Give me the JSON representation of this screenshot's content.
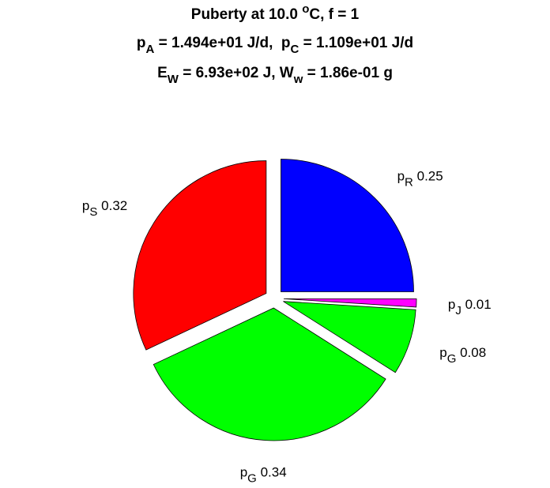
{
  "chart_data": {
    "type": "pie",
    "title_lines": [
      [
        {
          "text": "Puberty at 10.0 "
        },
        {
          "text": "o",
          "shift": "sup"
        },
        {
          "text": "C, f = 1"
        }
      ],
      [
        {
          "text": "p"
        },
        {
          "text": "A",
          "shift": "sub"
        },
        {
          "text": " = 1.494e+01 J/d,  p"
        },
        {
          "text": "C",
          "shift": "sub"
        },
        {
          "text": " = 1.109e+01 J/d"
        }
      ],
      [
        {
          "text": "E"
        },
        {
          "text": "W",
          "shift": "sub"
        },
        {
          "text": " = 6.93e+02 J, W"
        },
        {
          "text": "w",
          "shift": "sub"
        },
        {
          "text": " = 1.86e-01 g"
        }
      ]
    ],
    "categories": [
      {
        "text": "p",
        "sub": "R"
      },
      {
        "text": "p",
        "sub": "J"
      },
      {
        "text": "p",
        "sub": "G"
      },
      {
        "text": "p",
        "sub": "G"
      },
      {
        "text": "p",
        "sub": "S"
      }
    ],
    "values": [
      0.25,
      0.01,
      0.08,
      0.34,
      0.32
    ],
    "value_labels": [
      "0.25",
      "0.01",
      "0.08",
      "0.34",
      "0.32"
    ],
    "colors": [
      "#0000ff",
      "#ff00ff",
      "#00ff00",
      "#00ff00",
      "#ff0000"
    ],
    "start_angle": 90,
    "direction": "clockwise",
    "exploded": true
  }
}
